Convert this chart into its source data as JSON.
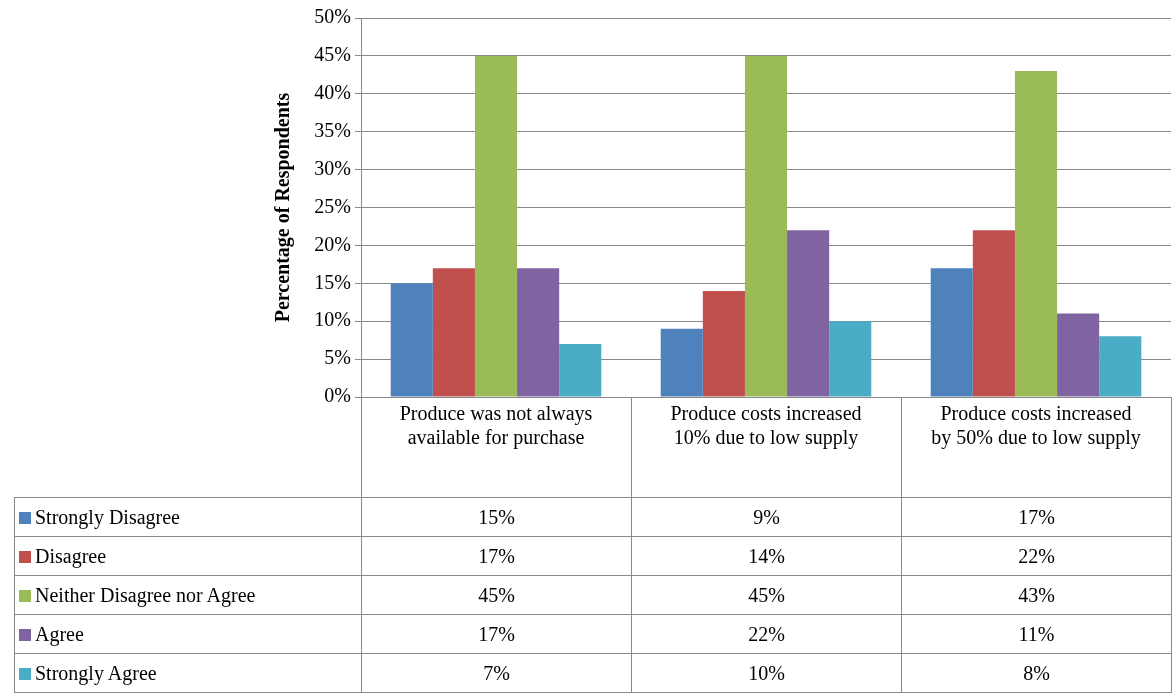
{
  "chart_data": {
    "type": "bar",
    "ylabel": "Percentage of Respondents",
    "categories": [
      "Produce was not always available for purchase",
      "Produce costs increased 10% due to low supply",
      "Produce costs increased by 50% due to low supply"
    ],
    "series": [
      {
        "name": "Strongly Disagree",
        "color": "#4f81bd",
        "values": [
          15,
          9,
          17
        ],
        "value_labels": [
          "15%",
          "9%",
          "17%"
        ]
      },
      {
        "name": "Disagree",
        "color": "#c0504d",
        "values": [
          17,
          14,
          22
        ],
        "value_labels": [
          "17%",
          "14%",
          "22%"
        ]
      },
      {
        "name": "Neither Disagree nor Agree",
        "color": "#9bbb59",
        "values": [
          45,
          45,
          43
        ],
        "value_labels": [
          "45%",
          "45%",
          "43%"
        ]
      },
      {
        "name": "Agree",
        "color": "#8064a2",
        "values": [
          17,
          22,
          11
        ],
        "value_labels": [
          "17%",
          "22%",
          "11%"
        ]
      },
      {
        "name": "Strongly Agree",
        "color": "#4bacc6",
        "values": [
          7,
          10,
          8
        ],
        "value_labels": [
          "7%",
          "10%",
          "8%"
        ]
      }
    ],
    "ylim": [
      0,
      50
    ],
    "yticks": [
      {
        "value": 0,
        "label": "0%"
      },
      {
        "value": 5,
        "label": "5%"
      },
      {
        "value": 10,
        "label": "10%"
      },
      {
        "value": 15,
        "label": "15%"
      },
      {
        "value": 20,
        "label": "20%"
      },
      {
        "value": 25,
        "label": "25%"
      },
      {
        "value": 30,
        "label": "30%"
      },
      {
        "value": 35,
        "label": "35%"
      },
      {
        "value": 40,
        "label": "40%"
      },
      {
        "value": 45,
        "label": "45%"
      },
      {
        "value": 50,
        "label": "50%"
      }
    ],
    "grid": "y",
    "legend": "bottom"
  }
}
